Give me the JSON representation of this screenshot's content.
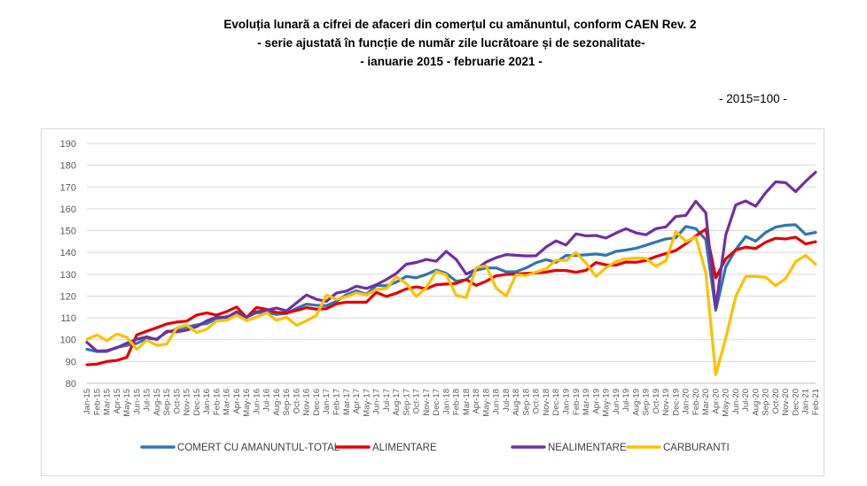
{
  "title_line1": "Evoluția lunară a cifrei de afaceri din comerțul cu amănuntul,  conform CAEN Rev. 2",
  "title_line2": "- serie ajustată în funcție de număr zile lucrătoare și de sezonalitate-",
  "title_line3": "- ianuarie 2015 -  februarie 2021  -",
  "base_note": "- 2015=100 -",
  "colors": {
    "total": "#2E75B6",
    "alimentare": "#E60000",
    "nealimentare": "#7030A0",
    "carburanti": "#FFC000",
    "grid": "#d9d9d9"
  },
  "chart_data": {
    "type": "line",
    "ylim": [
      80,
      190
    ],
    "yticks": [
      "80",
      "90",
      "100",
      "110",
      "120",
      "130",
      "140",
      "150",
      "160",
      "170",
      "180",
      "190"
    ],
    "grid": true,
    "legend_position": "bottom",
    "x": [
      "Jan-15",
      "Feb-15",
      "Mar-15",
      "Apr-15",
      "May-15",
      "Jun-15",
      "Jul-15",
      "Aug-15",
      "Sep-15",
      "Oct-15",
      "Nov-15",
      "Dec-15",
      "Jan-16",
      "Feb-16",
      "Mar-16",
      "Apr-16",
      "May-16",
      "Jun-16",
      "Jul-16",
      "Aug-16",
      "Sep-16",
      "Oct-16",
      "Nov-16",
      "Dec-16",
      "Jan-17",
      "Feb-17",
      "Mar-17",
      "Apr-17",
      "May-17",
      "Jun-17",
      "Jul-17",
      "Aug-17",
      "Sep-17",
      "Oct-17",
      "Nov-17",
      "Dec-17",
      "Jan-18",
      "Feb-18",
      "Mar-18",
      "Apr-18",
      "May-18",
      "Jun-18",
      "Jul-18",
      "Aug-18",
      "Sep-18",
      "Oct-18",
      "Nov-18",
      "Dec-18",
      "Jan-19",
      "Feb-19",
      "Mar-19",
      "Apr-19",
      "May-19",
      "Jun-19",
      "Jul-19",
      "Aug-19",
      "Sep-19",
      "Oct-19",
      "Nov-19",
      "Dec-19",
      "Jan-20",
      "Feb-20",
      "Mar-20",
      "Apr-20",
      "May-20",
      "Jun-20",
      "Jul-20",
      "Aug-20",
      "Sep-20",
      "Oct-20",
      "Nov-20",
      "Dec-20",
      "Jan-21",
      "Feb-21"
    ],
    "xtick_labels": [
      "Jan-15",
      "Feb-15",
      "Mar-15",
      "Apr-15",
      "May-15",
      "Jun-15",
      "Jul-15",
      "Aug-15",
      "Sep-15",
      "Oct-15",
      "Nov-15",
      "Dec-15",
      "Jan-16",
      "Feb-16",
      "Mar-16",
      "Apr-16",
      "May-16",
      "Jun-16",
      "Jul-16",
      "Aug-16",
      "Sep-16",
      "Oct-16",
      "Nov-16",
      "Dec-16",
      "Jan-17",
      "Feb-17",
      "Mar-17",
      "Apr-17",
      "May-17",
      "Jun-17",
      "Jul-17",
      "Aug-17",
      "Sep-17",
      "Oct-17",
      "Nov-17",
      "Dec-17",
      "Jan-18",
      "Feb-18",
      "Mar-18",
      "Apr-18",
      "May-18",
      "Jun-18",
      "Jul-18",
      "Aug-18",
      "Sep-18",
      "Oct-18",
      "Nov-18",
      "Dec-18",
      "Jan-19",
      "Feb-19",
      "Mar-19",
      "Apr-19",
      "May-19",
      "Jun-19",
      "Jul-19",
      "Aug-19",
      "Sep-19",
      "Oct-19",
      "Nov-19",
      "Dec-19",
      "Jan-20",
      "Feb-20",
      "Mar-20",
      "Apr-20",
      "May-20",
      "Jun-20",
      "Jul-20",
      "Aug-20",
      "Sep-20",
      "Oct-20",
      "Nov-20",
      "Dec-20",
      "Jan-21",
      "Feb-21"
    ],
    "series": [
      {
        "name": "COMERT CU AMANUNTUL-TOTAL",
        "color_key": "total",
        "values": [
          95.6,
          94.6,
          94.6,
          96.5,
          97.4,
          98.3,
          100.6,
          100.3,
          103.4,
          104.8,
          105.8,
          106.8,
          107.4,
          109.6,
          110.6,
          111.5,
          110.4,
          112.4,
          112.3,
          111.6,
          112.0,
          114.4,
          116.3,
          115.8,
          115.6,
          117.6,
          120.6,
          122.4,
          120.8,
          124.9,
          124.7,
          126.4,
          129.0,
          128.4,
          129.9,
          131.9,
          130.4,
          126.8,
          127.5,
          131.8,
          132.9,
          132.9,
          131.1,
          131.2,
          132.9,
          135.3,
          136.7,
          135.5,
          138.6,
          138.6,
          138.9,
          139.3,
          138.7,
          140.5,
          141.1,
          141.9,
          143.3,
          144.8,
          146.2,
          146.7,
          151.9,
          150.9,
          145.9,
          113.5,
          133.4,
          141.3,
          147.3,
          145.2,
          149.2,
          151.6,
          152.5,
          152.7,
          148.3,
          149.2
        ]
      },
      {
        "name": "ALIMENTARE",
        "color_key": "alimentare",
        "values": [
          88.5,
          88.8,
          90.0,
          90.5,
          91.9,
          102.2,
          103.9,
          105.5,
          107.2,
          108.1,
          108.5,
          111.3,
          112.3,
          111.3,
          112.9,
          115.0,
          110.2,
          114.8,
          113.9,
          112.5,
          112.3,
          113.4,
          114.7,
          114.0,
          114.2,
          116.4,
          117.2,
          117.2,
          117.2,
          121.7,
          119.8,
          121.3,
          123.3,
          124.2,
          123.4,
          125.2,
          125.5,
          125.8,
          127.6,
          124.9,
          126.8,
          129.3,
          129.9,
          130.1,
          130.4,
          130.6,
          131.0,
          131.8,
          131.7,
          130.9,
          131.8,
          135.4,
          134.3,
          134.2,
          135.6,
          135.5,
          136.3,
          138.1,
          139.5,
          140.9,
          144.0,
          147.6,
          150.7,
          128.4,
          137.1,
          141.1,
          142.4,
          141.8,
          144.7,
          146.5,
          146.2,
          147.0,
          143.9,
          144.9
        ]
      },
      {
        "name": "NEALIMENTARE",
        "color_key": "nealimentare",
        "values": [
          98.8,
          94.8,
          95.0,
          96.3,
          98.4,
          100.2,
          101.3,
          100.0,
          103.9,
          103.6,
          104.4,
          106.0,
          108.6,
          110.4,
          110.1,
          112.8,
          110.3,
          112.8,
          113.5,
          114.5,
          113.2,
          116.9,
          120.5,
          118.5,
          117.6,
          121.4,
          122.3,
          124.5,
          123.5,
          125.2,
          127.6,
          130.4,
          134.6,
          135.4,
          136.8,
          136.0,
          140.5,
          136.8,
          130.1,
          132.3,
          135.6,
          137.6,
          139.0,
          138.7,
          138.4,
          138.5,
          142.5,
          145.3,
          143.4,
          148.5,
          147.6,
          147.8,
          146.6,
          148.9,
          150.9,
          149.0,
          148.1,
          150.9,
          151.7,
          156.5,
          157.0,
          163.5,
          158.2,
          114.6,
          148.0,
          161.8,
          163.6,
          161.2,
          167.4,
          172.4,
          172.0,
          167.9,
          172.6,
          176.8
        ]
      },
      {
        "name": "CARBURANTI",
        "color_key": "carburanti",
        "values": [
          100.1,
          102.2,
          99.6,
          102.6,
          101.1,
          95.6,
          99.7,
          97.4,
          98.0,
          105.4,
          106.6,
          103.3,
          104.8,
          108.6,
          108.9,
          111.3,
          108.7,
          110.4,
          112.3,
          108.9,
          110.3,
          106.6,
          108.7,
          111.2,
          120.5,
          118.5,
          119.7,
          121.5,
          120.5,
          123.0,
          123.4,
          128.9,
          125.7,
          119.8,
          123.8,
          131.3,
          129.7,
          120.3,
          119.3,
          133.1,
          133.8,
          123.7,
          120.0,
          129.8,
          129.4,
          131.0,
          132.5,
          136.5,
          136.3,
          140.0,
          135.1,
          129.0,
          133.0,
          135.8,
          137.1,
          137.5,
          137.3,
          133.7,
          136.2,
          149.6,
          145.0,
          147.1,
          130.7,
          84.0,
          100.8,
          119.8,
          129.0,
          129.0,
          128.6,
          124.8,
          128.0,
          135.8,
          138.7,
          134.6
        ]
      }
    ]
  }
}
